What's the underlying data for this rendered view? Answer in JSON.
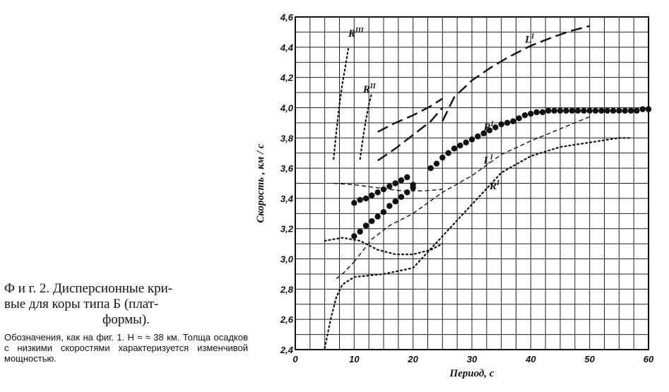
{
  "caption": {
    "title_line1": "Ф и г.  2.  Дисперсионные кри-",
    "title_line2": "вые для коры типа  Б (плат-",
    "title_line3": "формы).",
    "note": "Обозначения, как на фиг. 1. H ≈ ≈ 38 км. Толща осадков с низкими скоростями характеризуется изменчивой мощностью."
  },
  "chart_data": {
    "type": "line",
    "xlabel": "Период, с",
    "ylabel": "Скорость , км / с",
    "xlim": [
      0,
      60
    ],
    "ylim": [
      2.4,
      4.6
    ],
    "x_ticks": [
      "0",
      "10",
      "20",
      "30",
      "40",
      "50",
      "60"
    ],
    "y_ticks": [
      "2,4",
      "2,6",
      "2,8",
      "3,0",
      "3,2",
      "3,4",
      "3,6",
      "3,8",
      "4,0",
      "4,2",
      "4,4",
      "4,6"
    ],
    "grid": true,
    "series": [
      {
        "name": "RIII",
        "style": "dotted",
        "label_at": [
          9,
          4.47
        ],
        "x": [
          6.5,
          7,
          7.5,
          8,
          8.5,
          9
        ],
        "y": [
          3.66,
          3.85,
          4.02,
          4.16,
          4.27,
          4.39
        ]
      },
      {
        "name": "RII",
        "style": "dotted",
        "label_at": [
          11.5,
          4.1
        ],
        "x": [
          11,
          11.5,
          12,
          12.5,
          13
        ],
        "y": [
          3.66,
          3.8,
          3.92,
          4.02,
          4.1
        ]
      },
      {
        "name": "LII (upper)",
        "style": "long-dash",
        "x": [
          14,
          17,
          20,
          23,
          25
        ],
        "y": [
          3.84,
          3.9,
          3.95,
          4.01,
          4.06
        ]
      },
      {
        "name": "LII (lower)",
        "style": "long-dash",
        "x": [
          14,
          17,
          20,
          23,
          25
        ],
        "y": [
          3.65,
          3.73,
          3.82,
          3.91,
          4.0
        ]
      },
      {
        "name": "LI",
        "style": "long-dash",
        "label_at": [
          39,
          4.43
        ],
        "x": [
          25,
          27,
          30,
          33,
          36,
          40,
          44,
          47,
          50
        ],
        "y": [
          3.91,
          4.07,
          4.18,
          4.26,
          4.33,
          4.41,
          4.47,
          4.51,
          4.54
        ]
      },
      {
        "name": "RI (upper, large dots)",
        "style": "large-dots",
        "label_at": [
          32,
          3.85
        ],
        "x": [
          10,
          11,
          12,
          13,
          14,
          15,
          16,
          17,
          18,
          19,
          20,
          23,
          24,
          25,
          26,
          27,
          28,
          29,
          30,
          31,
          32,
          33,
          34,
          35,
          36,
          37,
          38,
          39,
          40,
          41,
          42,
          43,
          44,
          45,
          46,
          47,
          48,
          49,
          50,
          51,
          52,
          53,
          54,
          55,
          56,
          57,
          58,
          59,
          60
        ],
        "y": [
          3.37,
          3.39,
          3.4,
          3.42,
          3.44,
          3.46,
          3.48,
          3.5,
          3.52,
          3.54,
          3.49,
          3.6,
          3.63,
          3.67,
          3.7,
          3.73,
          3.75,
          3.77,
          3.79,
          3.81,
          3.83,
          3.85,
          3.87,
          3.89,
          3.9,
          3.91,
          3.93,
          3.95,
          3.96,
          3.97,
          3.97,
          3.98,
          3.98,
          3.98,
          3.98,
          3.98,
          3.98,
          3.98,
          3.98,
          3.98,
          3.98,
          3.98,
          3.98,
          3.98,
          3.98,
          3.98,
          3.98,
          3.99,
          3.99
        ]
      },
      {
        "name": "RI (lower branch, large dots)",
        "style": "large-dots",
        "x": [
          10,
          11,
          12,
          13,
          14,
          15,
          16,
          17,
          18,
          19,
          20
        ],
        "y": [
          3.15,
          3.18,
          3.22,
          3.25,
          3.28,
          3.31,
          3.35,
          3.38,
          3.41,
          3.44,
          3.47
        ]
      },
      {
        "name": "LI",
        "style": "short-dash",
        "label_at": [
          32,
          3.63
        ],
        "x": [
          10,
          13,
          16,
          20,
          25,
          30,
          35,
          40,
          45,
          50
        ],
        "y": [
          2.98,
          3.13,
          3.22,
          3.3,
          3.44,
          3.55,
          3.69,
          3.78,
          3.86,
          3.94
        ]
      },
      {
        "name": "short-dash near 3.5",
        "style": "short-dash",
        "x": [
          6.5,
          10,
          14,
          18,
          22,
          25
        ],
        "y": [
          3.5,
          3.49,
          3.47,
          3.45,
          3.45,
          3.46
        ]
      },
      {
        "name": "short-dash lower start",
        "style": "short-dash",
        "x": [
          7,
          8,
          9,
          10
        ],
        "y": [
          2.87,
          2.9,
          2.94,
          2.98
        ]
      },
      {
        "name": "dotted near 3.1",
        "style": "dotted",
        "x": [
          5,
          8,
          11,
          14,
          17,
          20,
          23,
          25
        ],
        "y": [
          3.12,
          3.14,
          3.12,
          3.06,
          3.03,
          3.03,
          3.06,
          3.1
        ]
      },
      {
        "name": "RI",
        "style": "dotted",
        "label_at": [
          33,
          3.46
        ],
        "x": [
          5,
          6,
          7,
          8,
          10,
          15,
          20,
          25,
          30,
          35,
          40,
          45,
          50,
          55,
          57
        ],
        "y": [
          2.41,
          2.6,
          2.75,
          2.83,
          2.88,
          2.9,
          2.94,
          3.15,
          3.36,
          3.57,
          3.68,
          3.74,
          3.77,
          3.8,
          3.8
        ]
      }
    ]
  }
}
